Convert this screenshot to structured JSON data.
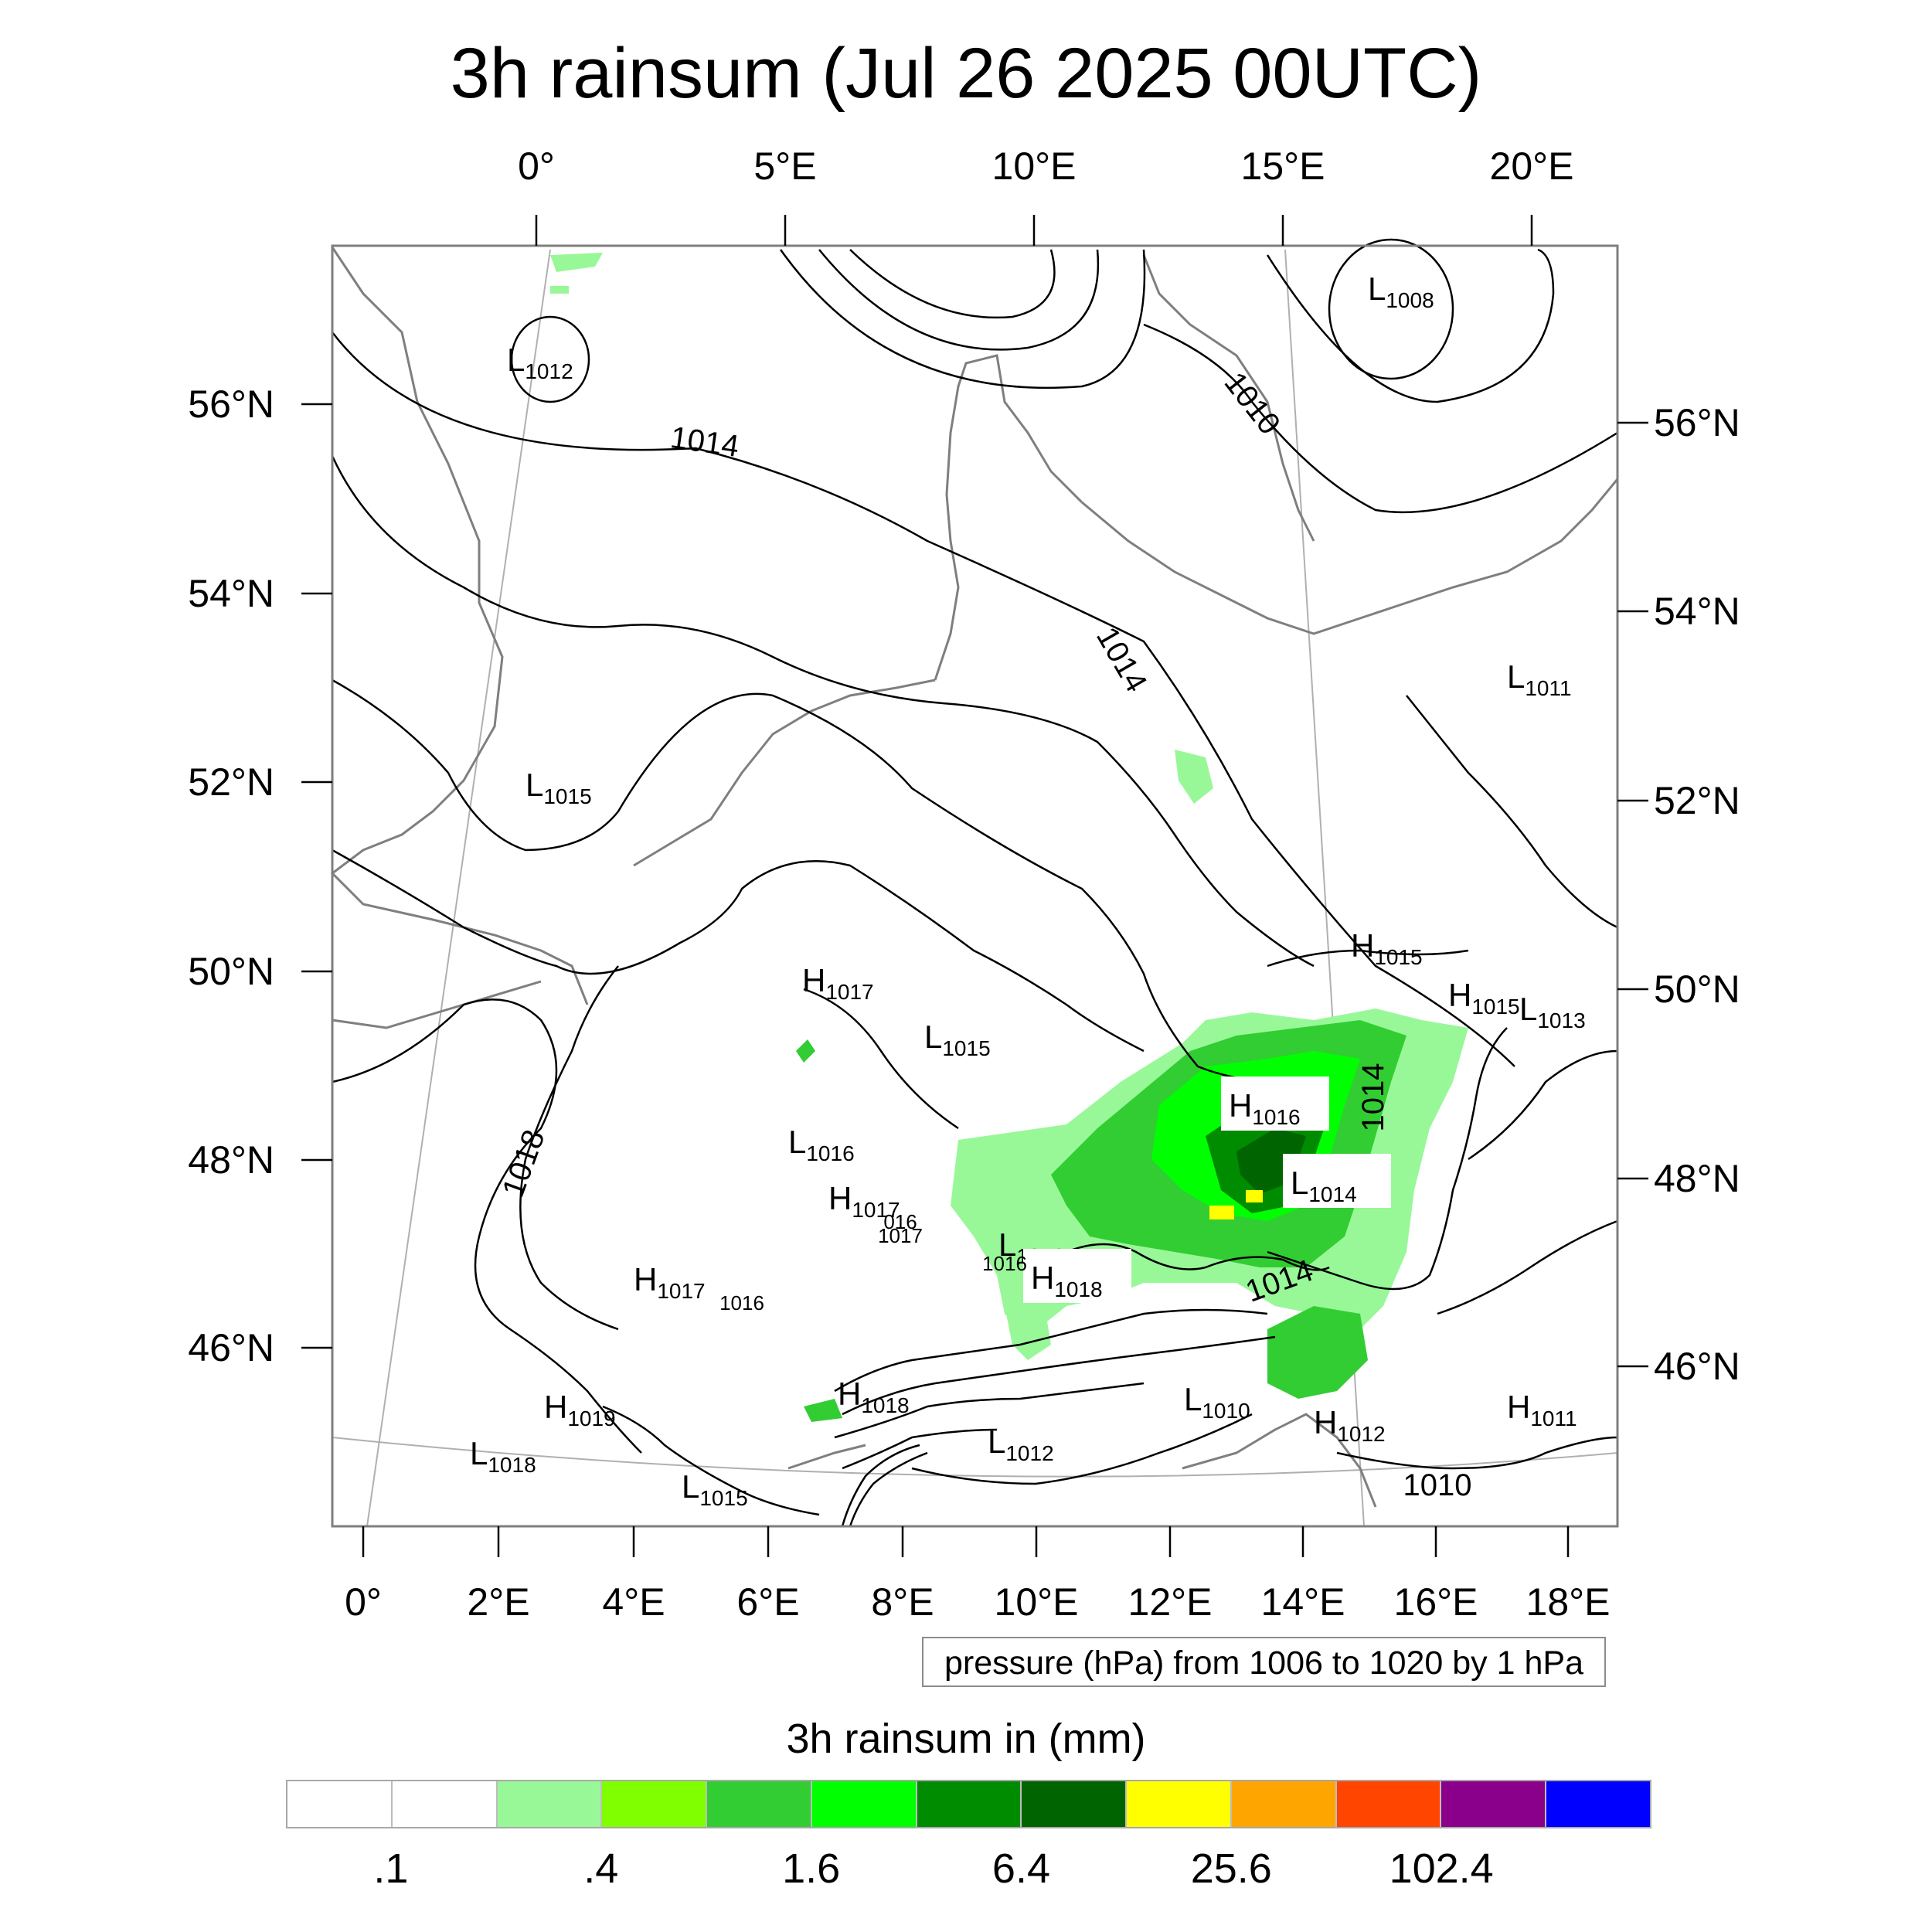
{
  "title": "3h rainsum (Jul 26 2025 00UTC)",
  "axes": {
    "top": [
      "0°",
      "5°E",
      "10°E",
      "15°E",
      "20°E"
    ],
    "bottom": [
      "0°",
      "2°E",
      "4°E",
      "6°E",
      "8°E",
      "10°E",
      "12°E",
      "14°E",
      "16°E",
      "18°E"
    ],
    "left": [
      "56°N",
      "54°N",
      "52°N",
      "50°N",
      "48°N",
      "46°N"
    ],
    "right": [
      "56°N",
      "54°N",
      "52°N",
      "50°N",
      "48°N",
      "46°N"
    ]
  },
  "pressure_note": "pressure (hPa) from 1006 to 1020 by 1 hPa",
  "pressure_centers": [
    {
      "letter": "L",
      "value": "1012"
    },
    {
      "letter": "L",
      "value": "1008"
    },
    {
      "letter": "L",
      "value": "1015"
    },
    {
      "letter": "L",
      "value": "1011"
    },
    {
      "letter": "H",
      "value": "1015"
    },
    {
      "letter": "H",
      "value": "1015"
    },
    {
      "letter": "L",
      "value": "1013"
    },
    {
      "letter": "H",
      "value": "1017"
    },
    {
      "letter": "L",
      "value": "1015"
    },
    {
      "letter": "H",
      "value": "1016"
    },
    {
      "letter": "L",
      "value": "1016"
    },
    {
      "letter": "L",
      "value": "1014"
    },
    {
      "letter": "H",
      "value": "1017"
    },
    {
      "letter": "L",
      "value": "1016"
    },
    {
      "letter": "H",
      "value": "1018"
    },
    {
      "letter": "H",
      "value": "1017"
    },
    {
      "letter": "H",
      "value": "1018"
    },
    {
      "letter": "H",
      "value": "1019"
    },
    {
      "letter": "L",
      "value": "1018"
    },
    {
      "letter": "L",
      "value": "1010"
    },
    {
      "letter": "L",
      "value": "1012"
    },
    {
      "letter": "H",
      "value": "1012"
    },
    {
      "letter": "H",
      "value": "1011"
    },
    {
      "letter": "L",
      "value": "1015"
    }
  ],
  "isobar_labels": [
    "1014",
    "1010",
    "1014",
    "1014",
    "1018",
    "1014",
    "1010",
    "016",
    "1016",
    "1017",
    "1016"
  ],
  "colorbar": {
    "title": "3h rainsum in (mm)",
    "colors": [
      "#ffffff",
      "#ffffff",
      "#98f898",
      "#80ff00",
      "#32cd32",
      "#00ff00",
      "#008c00",
      "#006400",
      "#ffff00",
      "#ffa500",
      "#ff4500",
      "#8b008b",
      "#0000ff"
    ],
    "labels": [
      ".1",
      ".4",
      "1.6",
      "6.4",
      "25.6",
      "102.4"
    ]
  }
}
